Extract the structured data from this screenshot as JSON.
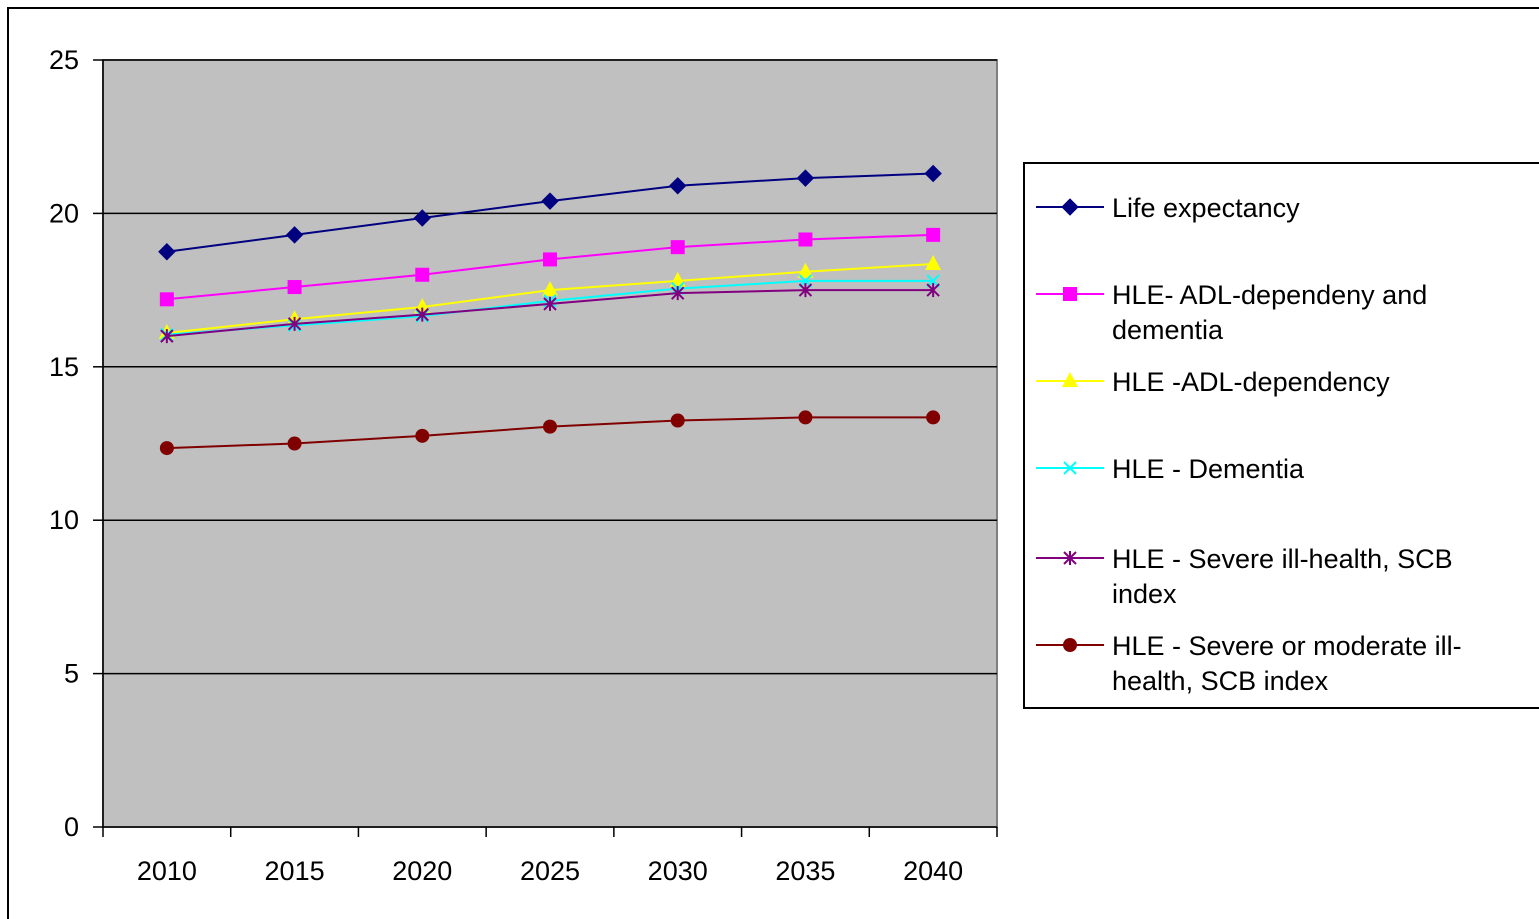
{
  "chart_data": {
    "type": "line",
    "title": "",
    "xlabel": "",
    "ylabel": "",
    "categories": [
      "2010",
      "2015",
      "2020",
      "2025",
      "2030",
      "2035",
      "2040"
    ],
    "ylim": [
      0,
      25
    ],
    "yticks": [
      0,
      5,
      10,
      15,
      20,
      25
    ],
    "grid": true,
    "legend_position": "right",
    "plot_background": "#c0c0c0",
    "series": [
      {
        "name": "Life expectancy",
        "marker": "diamond",
        "color": "#000080",
        "values": [
          18.75,
          19.3,
          19.85,
          20.4,
          20.9,
          21.15,
          21.3
        ]
      },
      {
        "name": "HLE- ADL-dependeny and dementia",
        "marker": "square",
        "color": "#ff00ff",
        "values": [
          17.2,
          17.6,
          18.0,
          18.5,
          18.9,
          19.15,
          19.3
        ]
      },
      {
        "name": "HLE -ADL-dependency",
        "marker": "triangle",
        "color": "#ffff00",
        "values": [
          16.1,
          16.55,
          16.95,
          17.5,
          17.8,
          18.1,
          18.35
        ]
      },
      {
        "name": "HLE - Dementia",
        "marker": "x",
        "color": "#00ffff",
        "values": [
          16.05,
          16.35,
          16.65,
          17.15,
          17.55,
          17.8,
          17.8
        ]
      },
      {
        "name": "HLE - Severe ill-health, SCB index",
        "marker": "star",
        "color": "#800080",
        "values": [
          16.0,
          16.4,
          16.7,
          17.05,
          17.4,
          17.5,
          17.5
        ]
      },
      {
        "name": "HLE - Severe or moderate ill-health, SCB index",
        "marker": "circle",
        "color": "#800000",
        "values": [
          12.35,
          12.5,
          12.75,
          13.05,
          13.25,
          13.35,
          13.35
        ]
      }
    ],
    "legend_lines": [
      [
        "Life expectancy"
      ],
      [
        "HLE- ADL-dependeny and",
        "dementia"
      ],
      [
        "HLE -ADL-dependency"
      ],
      [
        "HLE - Dementia"
      ],
      [
        "HLE - Severe ill-health, SCB",
        "index"
      ],
      [
        "HLE - Severe or moderate ill-",
        "health, SCB index"
      ]
    ]
  }
}
